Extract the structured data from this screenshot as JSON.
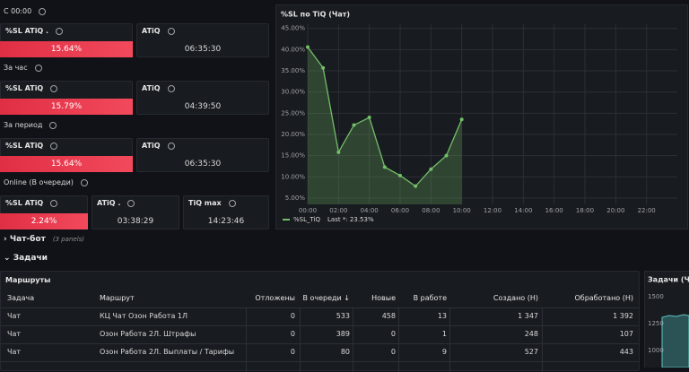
{
  "sections": [
    {
      "title": "С 00:00",
      "panels": [
        {
          "title": "%SL ATiQ .",
          "value": "15.64%"
        },
        {
          "title": "ATiQ",
          "value": "06:35:30"
        }
      ]
    },
    {
      "title": "За час",
      "panels": [
        {
          "title": "%SL ATiQ",
          "value": "15.79%"
        },
        {
          "title": "ATiQ",
          "value": "04:39:50"
        }
      ]
    },
    {
      "title": "За период",
      "panels": [
        {
          "title": "%SL ATiQ",
          "value": "15.64%"
        },
        {
          "title": "ATiQ",
          "value": "06:35:30"
        }
      ]
    },
    {
      "title": "Online (В очереди)",
      "panels": [
        {
          "title": "%SL ATiQ",
          "value": "2.24%"
        },
        {
          "title": "ATiQ .",
          "value": "03:38:29"
        },
        {
          "title": "TiQ max",
          "value": "14:23:46"
        }
      ]
    }
  ],
  "chart": {
    "type": "line",
    "title": "%SL по TiQ (Чат)",
    "x": [
      0,
      1,
      2,
      3,
      4,
      5,
      6,
      7,
      8,
      9,
      10
    ],
    "xlim": [
      0,
      24
    ],
    "xticks": [
      {
        "value": 0,
        "label": "00:00"
      },
      {
        "value": 2,
        "label": "02:00"
      },
      {
        "value": 4,
        "label": "04:00"
      },
      {
        "value": 6,
        "label": "06:00"
      },
      {
        "value": 8,
        "label": "08:00"
      },
      {
        "value": 10,
        "label": "10:00"
      },
      {
        "value": 12,
        "label": "12:00"
      },
      {
        "value": 14,
        "label": "14:00"
      },
      {
        "value": 16,
        "label": "16:00"
      },
      {
        "value": 18,
        "label": "18:00"
      },
      {
        "value": 20,
        "label": "20:00"
      },
      {
        "value": 22,
        "label": "22:00"
      }
    ],
    "ylim": [
      3.5,
      46
    ],
    "yticks": [
      {
        "value": 5,
        "label": "5.00%"
      },
      {
        "value": 10,
        "label": "10.00%"
      },
      {
        "value": 15,
        "label": "15.00%"
      },
      {
        "value": 20,
        "label": "20.00%"
      },
      {
        "value": 25,
        "label": "25.00%"
      },
      {
        "value": 30,
        "label": "30.00%"
      },
      {
        "value": 35,
        "label": "35.00%"
      },
      {
        "value": 40,
        "label": "40.00%"
      },
      {
        "value": 45,
        "label": "45.00%"
      }
    ],
    "grid": true,
    "series": [
      {
        "name": "%SL_TiQ",
        "color": "#73bf69",
        "values": [
          40.6,
          35.7,
          15.8,
          22.2,
          24,
          12.3,
          10.3,
          7.8,
          11.8,
          15,
          23.53
        ]
      }
    ],
    "legend_last": "Last *: 23.53%"
  },
  "collapsed_row": {
    "title": "Чат-бот",
    "note": "(3 panels)"
  },
  "row": {
    "title": "Задачи"
  },
  "table": {
    "title": "Маршруты",
    "columns": [
      "Задача",
      "Маршрут",
      "Отложены",
      "В очереди ↓",
      "Новые",
      "В работе",
      "Создано (Н)",
      "Обработано (Н)"
    ],
    "rows": [
      [
        "Чат",
        "КЦ Чат Озон Работа 1Л",
        "0",
        "533",
        "458",
        "13",
        "1 347",
        "1 392"
      ],
      [
        "Чат",
        "Озон Работа 2Л. Штрафы",
        "0",
        "389",
        "0",
        "1",
        "248",
        "107"
      ],
      [
        "Чат",
        "Озон Работа 2Л. Выплаты / Тарифы",
        "0",
        "80",
        "0",
        "9",
        "527",
        "443"
      ]
    ]
  },
  "side_panel": {
    "title": "Задачи (Чат",
    "yticks": [
      1500,
      1250,
      1000
    ]
  }
}
